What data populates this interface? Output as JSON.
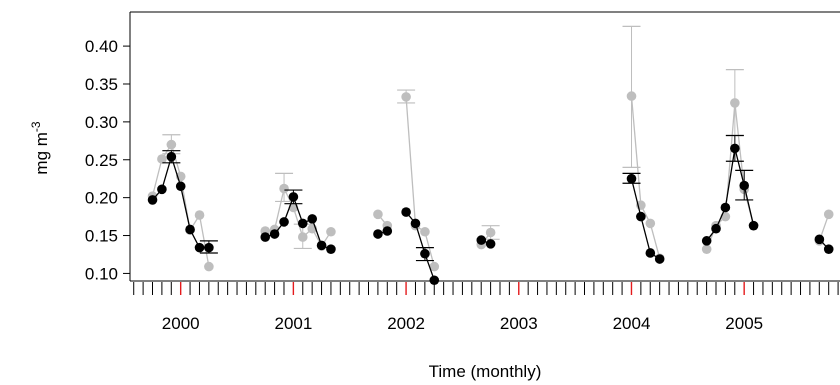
{
  "chart_data": {
    "type": "line",
    "xlabel": "Time (monthly)",
    "ylabel_base": "mg m",
    "ylabel_exp": "-3",
    "ylim": [
      0.09,
      0.445
    ],
    "yticks": [
      "0.10",
      "0.15",
      "0.20",
      "0.25",
      "0.30",
      "0.35",
      "0.40"
    ],
    "ytick_values": [
      0.1,
      0.15,
      0.2,
      0.25,
      0.3,
      0.35,
      0.4
    ],
    "xlim": [
      1999.55,
      2005.85
    ],
    "xticks": [
      "2000",
      "2001",
      "2002",
      "2003",
      "2004",
      "2005"
    ],
    "xtick_values": [
      2000,
      2001,
      2002,
      2003,
      2004,
      2005
    ],
    "monthly_tick_range": [
      1999.583,
      2005.833
    ],
    "january_tick_color": "#e41a1c",
    "monthly_tick_color": "#000000",
    "error_bar_color": "#000000",
    "series": [
      {
        "color": "#bebebe",
        "point_color": "#bebebe",
        "segments": [
          [
            {
              "x": 1999.75,
              "y": 0.202,
              "lo": null,
              "hi": null
            },
            {
              "x": 1999.833,
              "y": 0.251,
              "lo": null,
              "hi": null
            },
            {
              "x": 1999.917,
              "y": 0.27,
              "lo": 0.258,
              "hi": 0.283
            },
            {
              "x": 2000.0,
              "y": 0.228,
              "lo": null,
              "hi": null
            },
            {
              "x": 2000.083,
              "y": 0.157,
              "lo": null,
              "hi": null
            },
            {
              "x": 2000.167,
              "y": 0.177,
              "lo": null,
              "hi": null
            },
            {
              "x": 2000.25,
              "y": 0.109,
              "lo": null,
              "hi": null
            }
          ],
          [
            {
              "x": 2000.75,
              "y": 0.156,
              "lo": null,
              "hi": null
            },
            {
              "x": 2000.833,
              "y": 0.158,
              "lo": null,
              "hi": null
            },
            {
              "x": 2000.917,
              "y": 0.212,
              "lo": 0.195,
              "hi": 0.232
            },
            {
              "x": 2001.0,
              "y": 0.187,
              "lo": null,
              "hi": null
            },
            {
              "x": 2001.083,
              "y": 0.148,
              "lo": 0.133,
              "hi": 0.165
            },
            {
              "x": 2001.167,
              "y": 0.159,
              "lo": null,
              "hi": null
            },
            {
              "x": 2001.25,
              "y": 0.136,
              "lo": null,
              "hi": null
            },
            {
              "x": 2001.333,
              "y": 0.155,
              "lo": null,
              "hi": null
            }
          ],
          [
            {
              "x": 2001.75,
              "y": 0.178,
              "lo": null,
              "hi": null
            },
            {
              "x": 2001.833,
              "y": 0.163,
              "lo": null,
              "hi": null
            }
          ],
          [
            {
              "x": 2002.0,
              "y": 0.333,
              "lo": 0.325,
              "hi": 0.342
            },
            {
              "x": 2002.083,
              "y": 0.163,
              "lo": null,
              "hi": null
            },
            {
              "x": 2002.167,
              "y": 0.155,
              "lo": null,
              "hi": null
            },
            {
              "x": 2002.25,
              "y": 0.109,
              "lo": null,
              "hi": null
            }
          ],
          [
            {
              "x": 2002.667,
              "y": 0.138,
              "lo": null,
              "hi": null
            },
            {
              "x": 2002.75,
              "y": 0.154,
              "lo": 0.145,
              "hi": 0.163
            }
          ],
          [
            {
              "x": 2004.0,
              "y": 0.334,
              "lo": 0.24,
              "hi": 0.426
            },
            {
              "x": 2004.083,
              "y": 0.19,
              "lo": null,
              "hi": null
            },
            {
              "x": 2004.167,
              "y": 0.166,
              "lo": null,
              "hi": null
            },
            {
              "x": 2004.25,
              "y": 0.12,
              "lo": null,
              "hi": null
            }
          ],
          [
            {
              "x": 2004.667,
              "y": 0.132,
              "lo": null,
              "hi": null
            },
            {
              "x": 2004.75,
              "y": 0.163,
              "lo": null,
              "hi": null
            },
            {
              "x": 2004.833,
              "y": 0.175,
              "lo": null,
              "hi": null
            },
            {
              "x": 2004.917,
              "y": 0.325,
              "lo": 0.282,
              "hi": 0.369
            },
            {
              "x": 2005.0,
              "y": 0.211,
              "lo": null,
              "hi": null
            },
            {
              "x": 2005.083,
              "y": 0.163,
              "lo": null,
              "hi": null
            }
          ],
          [
            {
              "x": 2005.667,
              "y": 0.143,
              "lo": null,
              "hi": null
            },
            {
              "x": 2005.75,
              "y": 0.178,
              "lo": null,
              "hi": null
            }
          ]
        ]
      },
      {
        "color": "#000000",
        "point_color": "#000000",
        "segments": [
          [
            {
              "x": 1999.75,
              "y": 0.197,
              "lo": null,
              "hi": null
            },
            {
              "x": 1999.833,
              "y": 0.211,
              "lo": null,
              "hi": null
            },
            {
              "x": 1999.917,
              "y": 0.254,
              "lo": 0.246,
              "hi": 0.262
            },
            {
              "x": 2000.0,
              "y": 0.215,
              "lo": null,
              "hi": null
            },
            {
              "x": 2000.083,
              "y": 0.158,
              "lo": null,
              "hi": null
            },
            {
              "x": 2000.167,
              "y": 0.134,
              "lo": null,
              "hi": null
            },
            {
              "x": 2000.25,
              "y": 0.134,
              "lo": 0.127,
              "hi": 0.143
            }
          ],
          [
            {
              "x": 2000.75,
              "y": 0.148,
              "lo": null,
              "hi": null
            },
            {
              "x": 2000.833,
              "y": 0.152,
              "lo": null,
              "hi": null
            },
            {
              "x": 2000.917,
              "y": 0.168,
              "lo": null,
              "hi": null
            },
            {
              "x": 2001.0,
              "y": 0.201,
              "lo": 0.192,
              "hi": 0.21
            },
            {
              "x": 2001.083,
              "y": 0.166,
              "lo": null,
              "hi": null
            },
            {
              "x": 2001.167,
              "y": 0.172,
              "lo": null,
              "hi": null
            },
            {
              "x": 2001.25,
              "y": 0.137,
              "lo": null,
              "hi": null
            },
            {
              "x": 2001.333,
              "y": 0.132,
              "lo": null,
              "hi": null
            }
          ],
          [
            {
              "x": 2001.75,
              "y": 0.152,
              "lo": null,
              "hi": null
            },
            {
              "x": 2001.833,
              "y": 0.156,
              "lo": null,
              "hi": null
            }
          ],
          [
            {
              "x": 2002.0,
              "y": 0.181,
              "lo": null,
              "hi": null
            },
            {
              "x": 2002.083,
              "y": 0.166,
              "lo": null,
              "hi": null
            },
            {
              "x": 2002.167,
              "y": 0.126,
              "lo": 0.117,
              "hi": 0.134
            },
            {
              "x": 2002.25,
              "y": 0.091,
              "lo": null,
              "hi": null
            }
          ],
          [
            {
              "x": 2002.667,
              "y": 0.144,
              "lo": null,
              "hi": null
            },
            {
              "x": 2002.75,
              "y": 0.139,
              "lo": null,
              "hi": null
            }
          ],
          [
            {
              "x": 2004.0,
              "y": 0.225,
              "lo": 0.219,
              "hi": 0.232
            },
            {
              "x": 2004.083,
              "y": 0.175,
              "lo": null,
              "hi": null
            },
            {
              "x": 2004.167,
              "y": 0.127,
              "lo": null,
              "hi": null
            },
            {
              "x": 2004.25,
              "y": 0.119,
              "lo": null,
              "hi": null
            }
          ],
          [
            {
              "x": 2004.667,
              "y": 0.143,
              "lo": null,
              "hi": null
            },
            {
              "x": 2004.75,
              "y": 0.159,
              "lo": null,
              "hi": null
            },
            {
              "x": 2004.833,
              "y": 0.187,
              "lo": null,
              "hi": null
            },
            {
              "x": 2004.917,
              "y": 0.265,
              "lo": 0.248,
              "hi": 0.282
            },
            {
              "x": 2005.0,
              "y": 0.216,
              "lo": 0.197,
              "hi": 0.236
            },
            {
              "x": 2005.083,
              "y": 0.163,
              "lo": null,
              "hi": null
            }
          ],
          [
            {
              "x": 2005.667,
              "y": 0.145,
              "lo": null,
              "hi": null
            },
            {
              "x": 2005.75,
              "y": 0.132,
              "lo": null,
              "hi": null
            }
          ]
        ]
      }
    ]
  }
}
